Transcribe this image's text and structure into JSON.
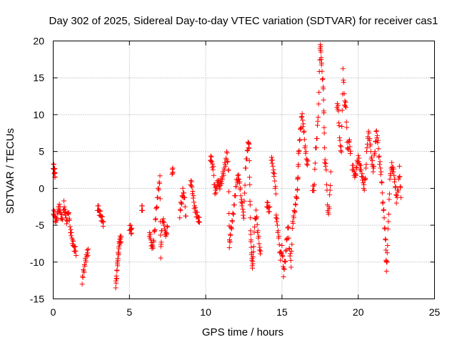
{
  "chart_data": {
    "type": "scatter",
    "title": "Day 302 of 2025, Sidereal Day-to-day VTEC variation (SDTVAR) for receiver cas1",
    "xlabel": "GPS time / hours",
    "ylabel": "SDTVAR / TECUs",
    "xlim": [
      0,
      25
    ],
    "ylim": [
      -15,
      20
    ],
    "xticks": [
      0,
      5,
      10,
      15,
      20,
      25
    ],
    "yticks": [
      -15,
      -10,
      -5,
      0,
      5,
      10,
      15,
      20
    ],
    "xtick_labels": [
      "0",
      "5",
      "10",
      "15",
      "20",
      "25"
    ],
    "ytick_labels": [
      "-15",
      "-10",
      "-5",
      "0",
      "5",
      "10",
      "15",
      "20"
    ],
    "grid": true,
    "marker": "+",
    "marker_color": "#ff0000",
    "series": [
      {
        "name": "SDTVAR",
        "segments": [
          [
            [
              0.0,
              3.2
            ],
            [
              0.05,
              2.6
            ],
            [
              0.1,
              2.2
            ],
            [
              0.12,
              1.8
            ]
          ],
          [
            [
              0.0,
              -3.0
            ],
            [
              0.1,
              -3.8
            ],
            [
              0.2,
              -4.5
            ],
            [
              0.3,
              -3.2
            ],
            [
              0.4,
              -2.4
            ],
            [
              0.5,
              -3.6
            ],
            [
              0.6,
              -4.2
            ],
            [
              0.7,
              -2.2
            ],
            [
              0.8,
              -3.4
            ],
            [
              0.9,
              -4.6
            ],
            [
              1.0,
              -3.0
            ],
            [
              1.1,
              -5.2
            ],
            [
              1.2,
              -6.5
            ],
            [
              1.3,
              -7.5
            ],
            [
              1.4,
              -8.2
            ],
            [
              1.5,
              -8.6
            ]
          ],
          [
            [
              1.9,
              -12.5
            ],
            [
              2.0,
              -11.2
            ],
            [
              2.1,
              -10.0
            ],
            [
              2.2,
              -9.0
            ],
            [
              2.3,
              -8.5
            ]
          ],
          [
            [
              2.9,
              -2.5
            ],
            [
              3.0,
              -3.0
            ],
            [
              3.1,
              -3.6
            ],
            [
              3.2,
              -4.2
            ],
            [
              3.3,
              -4.8
            ]
          ],
          [
            [
              4.1,
              -13.0
            ],
            [
              4.15,
              -12.2
            ],
            [
              4.2,
              -10.5
            ],
            [
              4.25,
              -9.5
            ],
            [
              4.3,
              -8.2
            ],
            [
              4.35,
              -7.2
            ],
            [
              4.4,
              -6.9
            ],
            [
              4.45,
              -7.0
            ]
          ],
          [
            [
              5.0,
              -5.2
            ],
            [
              5.1,
              -5.6
            ],
            [
              5.15,
              -5.9
            ]
          ],
          [
            [
              5.8,
              -2.5
            ],
            [
              5.85,
              -3.0
            ]
          ],
          [
            [
              6.3,
              -6.0
            ],
            [
              6.4,
              -7.0
            ],
            [
              6.5,
              -8.2
            ],
            [
              6.6,
              -7.0
            ],
            [
              6.7,
              -4.5
            ],
            [
              6.8,
              -2.0
            ],
            [
              6.9,
              0.0
            ],
            [
              7.0,
              1.2
            ],
            [
              7.05,
              -9.2
            ],
            [
              7.1,
              -6.0
            ],
            [
              7.2,
              -4.0
            ],
            [
              7.3,
              -5.5
            ],
            [
              7.4,
              -6.5
            ],
            [
              7.5,
              -5.0
            ]
          ],
          [
            [
              7.8,
              2.4
            ],
            [
              7.85,
              2.2
            ]
          ],
          [
            [
              8.3,
              -3.5
            ],
            [
              8.4,
              -2.0
            ],
            [
              8.5,
              -0.5
            ],
            [
              8.6,
              -1.0
            ],
            [
              8.7,
              -4.0
            ]
          ],
          [
            [
              9.0,
              1.0
            ],
            [
              9.1,
              0.2
            ],
            [
              9.2,
              -1.5
            ],
            [
              9.3,
              -3.0
            ],
            [
              9.4,
              -3.5
            ],
            [
              9.5,
              -4.0
            ],
            [
              9.6,
              -4.6
            ]
          ],
          [
            [
              10.3,
              4.3
            ],
            [
              10.4,
              3.6
            ],
            [
              10.5,
              2.5
            ],
            [
              10.6,
              -0.5
            ],
            [
              10.7,
              0.0
            ],
            [
              10.8,
              1.0
            ],
            [
              10.9,
              0.3
            ],
            [
              11.0,
              0.8
            ],
            [
              11.1,
              1.5
            ],
            [
              11.2,
              2.5
            ],
            [
              11.3,
              3.5
            ],
            [
              11.4,
              4.8
            ],
            [
              11.5,
              2.0
            ],
            [
              11.55,
              -7.8
            ],
            [
              11.6,
              -6.5
            ],
            [
              11.7,
              -5.0
            ],
            [
              11.8,
              -3.5
            ],
            [
              11.9,
              -1.5
            ],
            [
              12.0,
              0.5
            ],
            [
              12.1,
              1.5
            ],
            [
              12.2,
              1.2
            ],
            [
              12.3,
              -1.0
            ],
            [
              12.4,
              -2.5
            ],
            [
              12.5,
              -3.8
            ],
            [
              12.6,
              2.5
            ],
            [
              12.7,
              4.5
            ],
            [
              12.8,
              6.2
            ],
            [
              12.85,
              5.5
            ],
            [
              12.9,
              -1.5
            ],
            [
              12.95,
              -6.5
            ],
            [
              13.0,
              -8.5
            ],
            [
              13.05,
              -10.5
            ],
            [
              13.1,
              -9.8
            ],
            [
              13.2,
              -5.0
            ],
            [
              13.3,
              -3.2
            ],
            [
              13.4,
              -5.5
            ],
            [
              13.5,
              -7.5
            ],
            [
              13.6,
              -9.0
            ]
          ],
          [
            [
              14.0,
              -2.0
            ],
            [
              14.1,
              -2.6
            ],
            [
              14.2,
              -3.0
            ]
          ],
          [
            [
              14.3,
              4.3
            ],
            [
              14.4,
              3.0
            ],
            [
              14.5,
              1.5
            ],
            [
              14.6,
              -0.5
            ]
          ],
          [
            [
              14.6,
              -3.5
            ],
            [
              14.7,
              -5.0
            ],
            [
              14.8,
              -7.0
            ],
            [
              14.9,
              -9.5
            ],
            [
              15.0,
              -8.0
            ],
            [
              15.1,
              -11.5
            ],
            [
              15.2,
              -10.0
            ],
            [
              15.3,
              -7.5
            ],
            [
              15.4,
              -5.0
            ],
            [
              15.5,
              -8.5
            ],
            [
              15.6,
              -10.2
            ],
            [
              15.7,
              -4.5
            ],
            [
              15.8,
              -3.5
            ],
            [
              15.9,
              -2.0
            ],
            [
              16.0,
              -0.5
            ],
            [
              16.05,
              2.0
            ],
            [
              16.1,
              5.0
            ],
            [
              16.2,
              7.5
            ],
            [
              16.3,
              10.0
            ],
            [
              16.4,
              8.5
            ],
            [
              16.5,
              6.0
            ],
            [
              16.6,
              4.0
            ],
            [
              16.7,
              3.2
            ]
          ],
          [
            [
              17.0,
              0.2
            ],
            [
              17.1,
              -0.3
            ],
            [
              17.2,
              5.0
            ],
            [
              17.3,
              7.0
            ],
            [
              17.4,
              11.2
            ],
            [
              17.5,
              19.5
            ],
            [
              17.55,
              18.5
            ],
            [
              17.6,
              16.5
            ],
            [
              17.7,
              14.0
            ],
            [
              17.75,
              10.0
            ],
            [
              17.8,
              4.0
            ],
            [
              17.9,
              2.5
            ],
            [
              18.0,
              -3.5
            ],
            [
              18.1,
              -2.5
            ],
            [
              18.2,
              2.0
            ]
          ],
          [
            [
              18.6,
              11.5
            ],
            [
              18.7,
              10.5
            ],
            [
              18.8,
              6.0
            ],
            [
              18.9,
              5.2
            ],
            [
              19.0,
              16.0
            ],
            [
              19.1,
              11.8
            ],
            [
              19.2,
              11.0
            ],
            [
              19.3,
              5.0
            ],
            [
              19.4,
              6.5
            ],
            [
              19.5,
              4.8
            ]
          ],
          [
            [
              19.6,
              3.0
            ],
            [
              19.7,
              2.5
            ],
            [
              19.8,
              1.5
            ],
            [
              19.9,
              3.0
            ],
            [
              20.0,
              4.2
            ],
            [
              20.1,
              3.0
            ],
            [
              20.2,
              2.5
            ],
            [
              20.3,
              1.0
            ],
            [
              20.4,
              0.0
            ],
            [
              20.5,
              2.5
            ],
            [
              20.6,
              6.5
            ],
            [
              20.7,
              7.5
            ],
            [
              20.8,
              5.5
            ],
            [
              20.9,
              3.5
            ],
            [
              21.0,
              2.5
            ],
            [
              21.1,
              5.5
            ],
            [
              21.2,
              7.8
            ],
            [
              21.3,
              6.0
            ],
            [
              21.4,
              3.5
            ],
            [
              21.5,
              2.0
            ],
            [
              21.6,
              -1.5
            ],
            [
              21.7,
              -4.0
            ],
            [
              21.8,
              -7.5
            ],
            [
              21.85,
              -11.0
            ],
            [
              21.9,
              -9.0
            ],
            [
              22.0,
              -3.0
            ],
            [
              22.1,
              2.0
            ],
            [
              22.2,
              3.0
            ],
            [
              22.3,
              2.5
            ],
            [
              22.4,
              1.0
            ],
            [
              22.5,
              -1.5
            ],
            [
              22.6,
              -0.5
            ],
            [
              22.7,
              2.5
            ],
            [
              22.8,
              -1.0
            ]
          ]
        ]
      }
    ]
  }
}
